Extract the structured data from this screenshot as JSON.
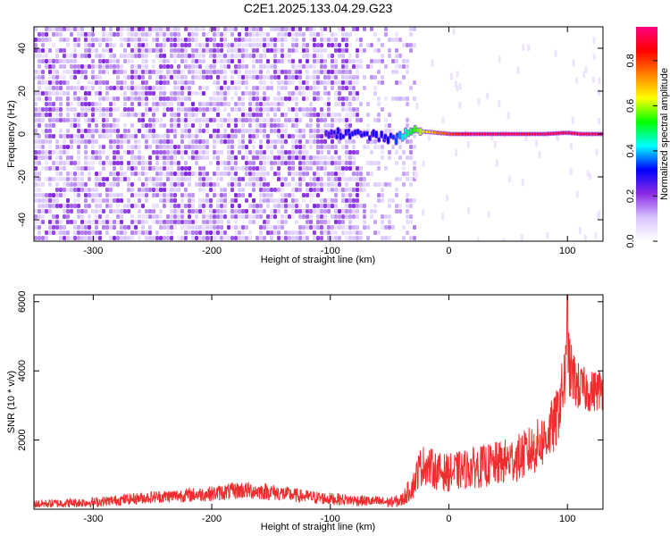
{
  "figure": {
    "title": "C2E1.2025.133.04.29.G23"
  },
  "chart_data": [
    {
      "type": "heatmap",
      "title": "",
      "xlabel": "Height of straight line (km)",
      "ylabel": "Frequency (Hz)",
      "xlim": [
        -350,
        130
      ],
      "ylim": [
        -50,
        50
      ],
      "x_ticks": [
        -300,
        -200,
        -100,
        0,
        100
      ],
      "x_tick_labels": [
        "-300",
        "-200",
        "-100",
        "0",
        "100"
      ],
      "y_ticks": [
        -40,
        -20,
        0,
        20,
        40
      ],
      "y_tick_labels": [
        "-40",
        "-20",
        "0",
        "20",
        "40"
      ],
      "noise_region_km": [
        -350,
        -30
      ],
      "sparse_region_km": [
        -30,
        130
      ],
      "signal_trace": {
        "x": [
          -105,
          -95,
          -85,
          -75,
          -65,
          -55,
          -45,
          -38,
          -30,
          -20,
          -10,
          0,
          10,
          20,
          40,
          60,
          80,
          95,
          100,
          110,
          120,
          130
        ],
        "freq": [
          1.0,
          0.5,
          0.0,
          0.0,
          -1.0,
          -1.5,
          -2.0,
          0.5,
          1.5,
          1.0,
          0.5,
          0.0,
          0.0,
          0.0,
          0.0,
          0.0,
          0.0,
          0.5,
          0.5,
          0.0,
          0.0,
          0.0
        ],
        "amplitude": [
          0.25,
          0.3,
          0.3,
          0.3,
          0.3,
          0.3,
          0.35,
          0.45,
          0.55,
          0.65,
          0.75,
          0.8,
          0.85,
          0.9,
          0.9,
          0.9,
          0.9,
          0.9,
          0.9,
          0.9,
          0.9,
          0.9
        ]
      },
      "colorbar": {
        "label": "Normalized spectral amplitude",
        "range": [
          0,
          0.95
        ],
        "ticks": [
          0.0,
          0.2,
          0.4,
          0.6,
          0.8
        ],
        "tick_labels": [
          "0.0",
          "0.2",
          "0.4",
          "0.6",
          "0.8"
        ],
        "colors": [
          "#ffffff",
          "#d8c4ff",
          "#8a2be2",
          "#0000ff",
          "#00ffff",
          "#00ff00",
          "#ffff00",
          "#ff8000",
          "#ff0000",
          "#ff0080"
        ]
      }
    },
    {
      "type": "line",
      "title": "",
      "xlabel": "Height of straight line (km)",
      "ylabel": "SNR (10 * v/v)",
      "xlim": [
        -350,
        130
      ],
      "ylim": [
        0,
        6200
      ],
      "x_ticks": [
        -300,
        -200,
        -100,
        0,
        100
      ],
      "x_tick_labels": [
        "-300",
        "-200",
        "-100",
        "0",
        "100"
      ],
      "y_ticks": [
        2000,
        4000,
        6000
      ],
      "y_tick_labels": [
        "2000",
        "4000",
        "6000"
      ],
      "color": "#ee2e2e",
      "series": [
        {
          "x": [
            -350,
            -300,
            -250,
            -200,
            -175,
            -150,
            -125,
            -100,
            -75,
            -50,
            -40,
            -30,
            -25,
            -20,
            -10,
            0,
            20,
            40,
            60,
            70,
            80,
            90,
            95,
            100,
            105,
            110,
            120,
            130
          ],
          "y": [
            150,
            200,
            350,
            450,
            550,
            500,
            380,
            300,
            250,
            200,
            250,
            700,
            1200,
            1300,
            1100,
            1050,
            1200,
            1300,
            1500,
            1700,
            2000,
            2500,
            3300,
            4200,
            3800,
            3500,
            3400,
            3500
          ],
          "noise_amplitude": [
            120,
            140,
            180,
            220,
            260,
            240,
            200,
            180,
            160,
            150,
            200,
            400,
            550,
            600,
            550,
            550,
            600,
            650,
            700,
            750,
            800,
            850,
            900,
            1100,
            800,
            700,
            600,
            650
          ],
          "peak_x": 100,
          "peak_y": 6200
        }
      ]
    }
  ]
}
